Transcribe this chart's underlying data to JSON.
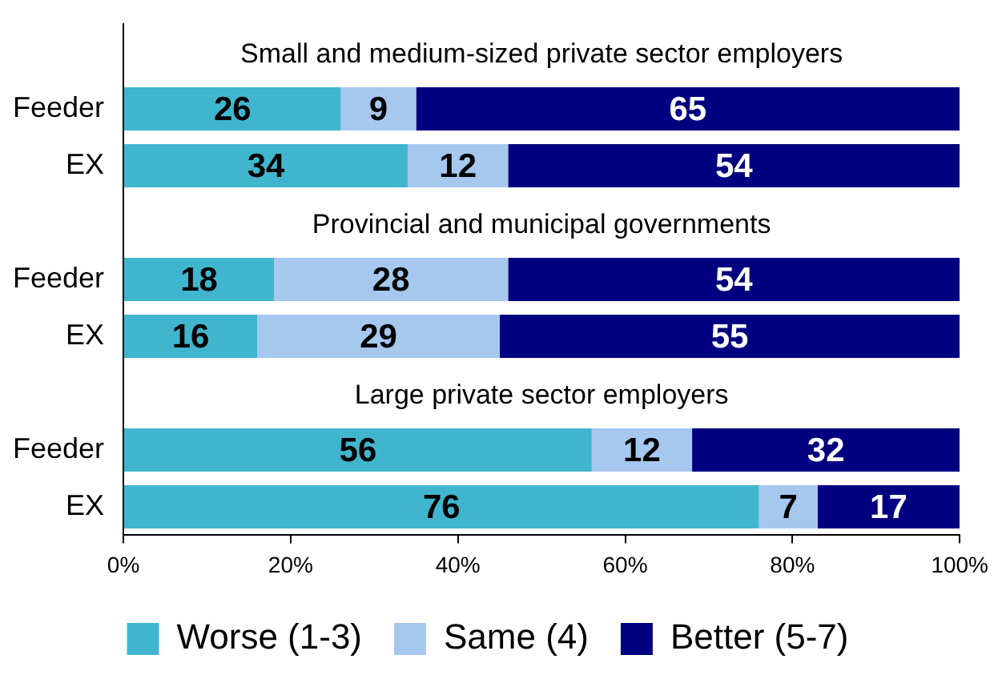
{
  "chart_data": {
    "type": "bar",
    "orientation": "horizontal",
    "stacked": true,
    "data_labels": true,
    "grid": false,
    "legend": "bottom",
    "categories": [
      null,
      "Feeder",
      "EX",
      null,
      "Feeder",
      "EX",
      null,
      "Feeder",
      "EX"
    ],
    "annotations": [
      "Small and medium-sized private sector employers",
      "Provincial and municipal governments",
      "Large private sector employers"
    ],
    "xlim": [
      0,
      100
    ],
    "xticks": [
      {
        "value": 0,
        "label": "0%"
      },
      {
        "value": 20,
        "label": "20%"
      },
      {
        "value": 40,
        "label": "40%"
      },
      {
        "value": 60,
        "label": "60%"
      },
      {
        "value": 80,
        "label": "80%"
      },
      {
        "value": 100,
        "label": "100%"
      }
    ],
    "series": [
      {
        "name": "Worse (1-3)",
        "color": "#40b6ce",
        "values": [
          null,
          26,
          34,
          null,
          18,
          16,
          null,
          56,
          76
        ]
      },
      {
        "name": "Same (4)",
        "color": "#a6c8ee",
        "values": [
          null,
          9,
          12,
          null,
          28,
          29,
          null,
          12,
          7
        ]
      },
      {
        "name": "Better (5-7)",
        "color": "#000080",
        "values": [
          null,
          65,
          54,
          null,
          54,
          55,
          null,
          32,
          17
        ]
      }
    ]
  }
}
